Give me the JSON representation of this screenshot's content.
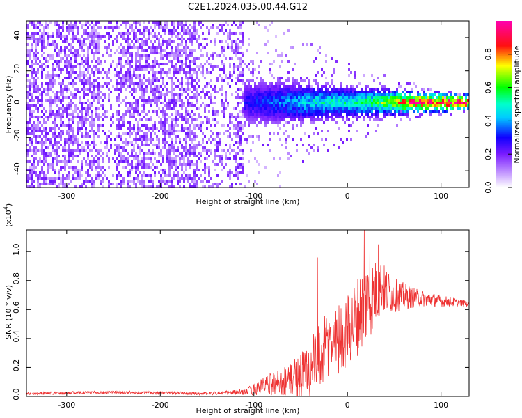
{
  "title": "C2E1.2024.035.00.44.G12",
  "chart_data": [
    {
      "type": "heatmap",
      "xlabel": "Height of straight line (km)",
      "ylabel": "Frequency (Hz)",
      "xlim": [
        -343,
        130
      ],
      "ylim": [
        -50,
        50
      ],
      "x_ticks": [
        -300,
        -200,
        -100,
        0,
        100
      ],
      "y_ticks": [
        -40,
        -20,
        0,
        20,
        40
      ],
      "colorbar": {
        "label": "Normalized spectral amplitude",
        "range": [
          0.0,
          1.0
        ],
        "ticks": [
          0.0,
          0.2,
          0.4,
          0.6,
          0.8
        ],
        "colors": [
          "#ffffff",
          "#9b30ff",
          "#0000ff",
          "#00ffff",
          "#00ff00",
          "#ffff00",
          "#ff0000",
          "#ff00ff"
        ]
      },
      "noise_floor_until_km": -110,
      "band_center_hz": 1,
      "band_profile": [
        {
          "x": -110,
          "halfwidth_hz": 10,
          "amplitude": 0.18
        },
        {
          "x": -60,
          "halfwidth_hz": 10,
          "amplitude": 0.3
        },
        {
          "x": -30,
          "halfwidth_hz": 8,
          "amplitude": 0.4
        },
        {
          "x": 0,
          "halfwidth_hz": 7,
          "amplitude": 0.4
        },
        {
          "x": 40,
          "halfwidth_hz": 6,
          "amplitude": 0.55
        },
        {
          "x": 70,
          "halfwidth_hz": 4,
          "amplitude": 0.85
        },
        {
          "x": 130,
          "halfwidth_hz": 2,
          "amplitude": 0.9
        }
      ]
    },
    {
      "type": "line",
      "xlabel": "Height of straight line (km)",
      "ylabel": "SNR (10 * v/v)",
      "y_multiplier_label": "(x10",
      "y_multiplier_exp": "4",
      "y_multiplier_close": ")",
      "xlim": [
        -343,
        130
      ],
      "ylim": [
        0,
        1.15
      ],
      "x_ticks": [
        -300,
        -200,
        -100,
        0,
        100
      ],
      "y_ticks": [
        0.0,
        0.2,
        0.4,
        0.6,
        0.8,
        1.0
      ],
      "y_tick_labels": [
        "0.0",
        "0.2",
        "0.4",
        "0.6",
        "0.8",
        "1.0"
      ],
      "series": [
        {
          "color": "#ee3333",
          "envelope": [
            {
              "x": -343,
              "mean": 0.02,
              "spread": 0.01
            },
            {
              "x": -250,
              "mean": 0.03,
              "spread": 0.01
            },
            {
              "x": -150,
              "mean": 0.02,
              "spread": 0.01
            },
            {
              "x": -110,
              "mean": 0.03,
              "spread": 0.02
            },
            {
              "x": -90,
              "mean": 0.07,
              "spread": 0.06
            },
            {
              "x": -60,
              "mean": 0.12,
              "spread": 0.12
            },
            {
              "x": -40,
              "mean": 0.18,
              "spread": 0.22
            },
            {
              "x": -20,
              "mean": 0.35,
              "spread": 0.25
            },
            {
              "x": 0,
              "mean": 0.45,
              "spread": 0.25
            },
            {
              "x": 20,
              "mean": 0.65,
              "spread": 0.3
            },
            {
              "x": 35,
              "mean": 0.75,
              "spread": 0.2
            },
            {
              "x": 50,
              "mean": 0.7,
              "spread": 0.12
            },
            {
              "x": 75,
              "mean": 0.68,
              "spread": 0.06
            },
            {
              "x": 100,
              "mean": 0.66,
              "spread": 0.04
            },
            {
              "x": 130,
              "mean": 0.64,
              "spread": 0.02
            }
          ],
          "peaks": [
            {
              "x": -32,
              "y": 0.96
            },
            {
              "x": 18,
              "y": 1.15
            },
            {
              "x": 24,
              "y": 1.13
            },
            {
              "x": 33,
              "y": 1.05
            }
          ]
        }
      ]
    }
  ]
}
